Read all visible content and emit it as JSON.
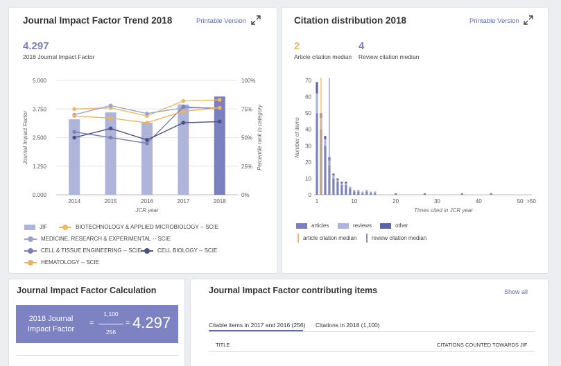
{
  "jif_trend": {
    "title": "Journal Impact Factor Trend 2018",
    "printable": "Printable Version",
    "value": "4.297",
    "value_label": "2018 Journal Impact Factor",
    "colors": {
      "jif_bar": "#aeb4da",
      "jif_bar_current": "#7b80c0",
      "biotech": "#f0b860",
      "medicine": "#9da3cd",
      "cell_tissue": "#7880b8",
      "cell_bio": "#4a5080",
      "hematology": "#f3b15c"
    },
    "legend": [
      {
        "key": "jif",
        "label": "JIF"
      },
      {
        "key": "biotech",
        "label": "BIOTECHNOLOGY & APPLIED MICROBIOLOGY -- SCIE"
      },
      {
        "key": "medicine",
        "label": "MEDICINE, RESEARCH & EXPERIMENTAL -- SCIE"
      },
      {
        "key": "cell_tissue",
        "label": "CELL & TISSUE ENGINEERING -- SCIE"
      },
      {
        "key": "cell_bio",
        "label": "CELL BIOLOGY -- SCIE"
      },
      {
        "key": "hematology",
        "label": "HEMATOLOGY -- SCIE"
      }
    ]
  },
  "citation_dist": {
    "title": "Citation distribution 2018",
    "printable": "Printable Version",
    "article_median": "2",
    "article_median_label": "Article citation median",
    "review_median": "4",
    "review_median_label": "Review citation median",
    "colors": {
      "articles": "#7b80c0",
      "reviews": "#aeb4da",
      "other": "#5d64aa",
      "article_median": "#f0b860",
      "review_median": "#8a8fb8"
    },
    "legend": [
      {
        "key": "articles",
        "label": "articles"
      },
      {
        "key": "reviews",
        "label": "reviews"
      },
      {
        "key": "other",
        "label": "other"
      },
      {
        "key": "article_median",
        "label": "article citation median"
      },
      {
        "key": "review_median",
        "label": "review citation median"
      }
    ]
  },
  "calculation": {
    "title": "Journal Impact Factor Calculation",
    "label": "2018 Journal Impact Factor",
    "numerator": "1,100",
    "denominator": "256",
    "equals": "=",
    "result": "4.297"
  },
  "contributing": {
    "title": "Journal Impact Factor contributing items",
    "show_all": "Show all",
    "tabs": [
      "Citable items in 2017 and 2016 (256)",
      "Citations in 2018 (1,100)"
    ],
    "col_title": "TITLE",
    "col_citations": "CITATIONS COUNTED TOWARDS JIF"
  },
  "chart_data": [
    {
      "type": "bar",
      "xlabel": "JCR year",
      "ylabel": "Journal Impact Factor",
      "y2label": "Percentile rank in category",
      "categories": [
        "2014",
        "2015",
        "2016",
        "2017",
        "2018"
      ],
      "ylim": [
        0,
        5
      ],
      "yticks": [
        "0.000",
        "1.250",
        "2.500",
        "3.750",
        "5.000"
      ],
      "y2lim": [
        0,
        100
      ],
      "y2ticks": [
        "0%",
        "25%",
        "50%",
        "75%",
        "100%"
      ],
      "bars": {
        "name": "JIF",
        "values": [
          3.3,
          3.6,
          3.15,
          3.95,
          4.297
        ]
      },
      "series": [
        {
          "key": "biotech",
          "name": "BIOTECHNOLOGY & APPLIED MICROBIOLOGY -- SCIE",
          "values": [
            75,
            76,
            69,
            82,
            83
          ]
        },
        {
          "key": "medicine",
          "name": "MEDICINE, RESEARCH & EXPERIMENTAL -- SCIE",
          "values": [
            70,
            78,
            71,
            76,
            76
          ]
        },
        {
          "key": "cell_tissue",
          "name": "CELL & TISSUE ENGINEERING -- SCIE",
          "values": [
            55,
            50,
            45,
            77,
            75
          ]
        },
        {
          "key": "cell_bio",
          "name": "CELL BIOLOGY -- SCIE",
          "values": [
            50,
            58,
            48,
            63,
            64
          ]
        },
        {
          "key": "hematology",
          "name": "HEMATOLOGY -- SCIE",
          "values": [
            69,
            67,
            63,
            73,
            76
          ]
        }
      ]
    },
    {
      "type": "bar",
      "xlabel": "Times cited in JCR year",
      "ylabel": "Number of items",
      "ylim": [
        0,
        70
      ],
      "yticks": [
        0,
        10,
        20,
        30,
        40,
        50,
        60,
        70
      ],
      "xticks": [
        "1",
        "10",
        "20",
        "30",
        "40",
        "50",
        ">50"
      ],
      "xtick_values": [
        1,
        10,
        20,
        30,
        40,
        50,
        52
      ],
      "x": [
        1,
        2,
        3,
        4,
        5,
        6,
        7,
        8,
        9,
        10,
        11,
        12,
        13,
        14,
        15,
        20,
        27,
        36,
        43
      ],
      "series": [
        {
          "name": "articles",
          "values": [
            50,
            40,
            30,
            18,
            10,
            8,
            6,
            6,
            4,
            2,
            2,
            1,
            2,
            1,
            1,
            1,
            1,
            1,
            1
          ]
        },
        {
          "name": "reviews",
          "values": [
            12,
            7,
            4,
            3,
            2,
            1,
            1,
            1,
            1,
            1,
            1,
            1,
            1,
            1,
            1,
            0,
            0,
            0,
            0
          ]
        },
        {
          "name": "other",
          "values": [
            7,
            3,
            2,
            2,
            1,
            1,
            1,
            1,
            0,
            0,
            0,
            0,
            0,
            0,
            0,
            0,
            0,
            0,
            0
          ]
        }
      ],
      "article_median": 2,
      "review_median": 4
    }
  ]
}
